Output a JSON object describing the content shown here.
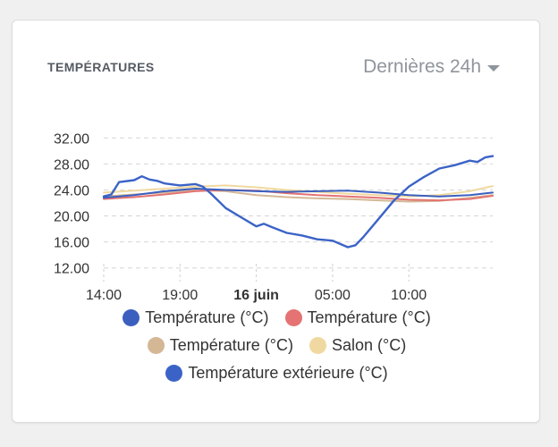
{
  "card": {
    "title": "TEMPÉRATURES",
    "range_label": "Dernières 24h"
  },
  "chart_data": {
    "type": "line",
    "title": "TEMPÉRATURES",
    "xlabel": "",
    "ylabel": "",
    "ylim": [
      11,
      33
    ],
    "xlim": [
      14,
      39.5
    ],
    "yticks": [
      "12.00",
      "16.00",
      "20.00",
      "24.00",
      "28.00",
      "32.00"
    ],
    "ytick_values": [
      12,
      16,
      20,
      24,
      28,
      32
    ],
    "xticks": [
      {
        "label": "14:00",
        "value": 14,
        "bold": false
      },
      {
        "label": "19:00",
        "value": 19,
        "bold": false
      },
      {
        "label": "16 juin",
        "value": 24,
        "bold": true
      },
      {
        "label": "05:00",
        "value": 29,
        "bold": false
      },
      {
        "label": "10:00",
        "value": 34,
        "bold": false
      }
    ],
    "grid": true,
    "legend_position": "bottom",
    "series": [
      {
        "name": "Température (°C)",
        "color": "#3b5fbf",
        "x": [
          14,
          16,
          18,
          20,
          22,
          24,
          26,
          28,
          30,
          32,
          34,
          36,
          38,
          39.5
        ],
        "values": [
          22.8,
          23.2,
          23.8,
          24.2,
          24.0,
          23.8,
          23.7,
          23.8,
          23.9,
          23.6,
          23.2,
          23.0,
          23.2,
          23.6
        ]
      },
      {
        "name": "Température (°C)",
        "color": "#e57373",
        "x": [
          14,
          16,
          18,
          20,
          22,
          24,
          26,
          28,
          30,
          32,
          34,
          36,
          38,
          39.5
        ],
        "values": [
          22.6,
          22.9,
          23.3,
          23.8,
          24.0,
          23.9,
          23.5,
          23.2,
          23.0,
          22.8,
          22.5,
          22.4,
          22.6,
          23.1
        ]
      },
      {
        "name": "Température (°C)",
        "color": "#d4b896",
        "x": [
          14,
          16,
          18,
          20,
          22,
          24,
          26,
          28,
          30,
          32,
          34,
          36,
          38,
          39.5
        ],
        "values": [
          23.0,
          23.3,
          23.6,
          24.0,
          23.8,
          23.2,
          22.9,
          22.7,
          22.6,
          22.4,
          22.2,
          22.3,
          22.8,
          23.2
        ]
      },
      {
        "name": "Salon (°C)",
        "color": "#f0d9a0",
        "x": [
          14,
          16,
          18,
          20,
          22,
          24,
          26,
          28,
          30,
          32,
          34,
          36,
          38,
          39.5
        ],
        "values": [
          23.6,
          23.9,
          24.2,
          24.5,
          24.7,
          24.4,
          24.0,
          23.7,
          23.4,
          23.2,
          23.0,
          23.2,
          23.8,
          24.6
        ]
      },
      {
        "name": "Température extérieure (°C)",
        "color": "#3b63c7",
        "x": [
          14,
          14.5,
          15,
          16,
          16.5,
          17,
          17.5,
          18,
          19,
          20,
          20.5,
          21,
          22,
          23,
          24,
          24.5,
          25,
          26,
          27,
          28,
          29,
          30,
          30.5,
          31,
          32,
          33,
          34,
          35,
          36,
          37,
          38,
          38.5,
          39,
          39.5
        ],
        "values": [
          23.0,
          23.3,
          25.2,
          25.5,
          26.1,
          25.6,
          25.4,
          25.0,
          24.7,
          24.9,
          24.5,
          23.5,
          21.2,
          19.8,
          18.4,
          18.8,
          18.3,
          17.4,
          17.0,
          16.4,
          16.2,
          15.2,
          15.5,
          16.7,
          19.5,
          22.3,
          24.5,
          26.0,
          27.3,
          27.8,
          28.5,
          28.3,
          29.0,
          29.2
        ]
      }
    ]
  },
  "legend": {
    "rows": [
      [
        0,
        1
      ],
      [
        2,
        3
      ],
      [
        4
      ]
    ]
  }
}
